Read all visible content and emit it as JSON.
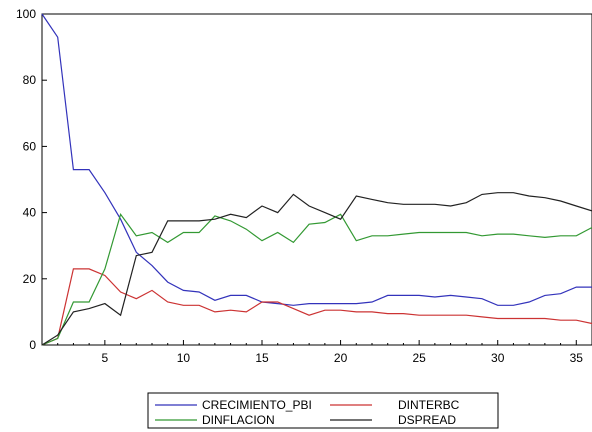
{
  "chart_data": {
    "type": "line",
    "x": [
      1,
      2,
      3,
      4,
      5,
      6,
      7,
      8,
      9,
      10,
      11,
      12,
      13,
      14,
      15,
      16,
      17,
      18,
      19,
      20,
      21,
      22,
      23,
      24,
      25,
      26,
      27,
      28,
      29,
      30,
      31,
      32,
      33,
      34,
      35,
      36
    ],
    "xticks": [
      5,
      10,
      15,
      20,
      25,
      30,
      35
    ],
    "yticks": [
      0,
      20,
      40,
      60,
      80,
      100
    ],
    "xlim": [
      1,
      36
    ],
    "ylim": [
      0,
      100
    ],
    "series": [
      {
        "name": "CRECIMIENTO_PBI",
        "color": "#3333bb",
        "values": [
          100,
          93,
          53,
          53,
          46,
          38,
          28,
          24,
          19,
          16.5,
          16,
          13.5,
          15,
          15,
          13,
          12.5,
          12,
          12.5,
          12.5,
          12.5,
          12.5,
          13,
          15,
          15,
          15,
          14.5,
          15,
          14.5,
          14,
          12,
          12,
          13,
          15,
          15.5,
          17.5,
          17.5
        ]
      },
      {
        "name": "DINTERBC",
        "color": "#cc3333",
        "values": [
          0,
          2,
          23,
          23,
          21,
          16,
          14,
          16.5,
          13,
          12,
          12,
          10,
          10.5,
          10,
          13,
          13,
          11,
          9,
          10.5,
          10.5,
          10,
          10,
          9.5,
          9.5,
          9,
          9,
          9,
          9,
          8.5,
          8,
          8,
          8,
          8,
          7.5,
          7.5,
          6.5
        ]
      },
      {
        "name": "DINFLACION",
        "color": "#339933",
        "values": [
          0,
          2,
          13,
          13,
          23,
          39.5,
          33,
          34,
          31,
          34,
          34,
          39,
          37.5,
          35,
          31.5,
          34,
          31,
          36.5,
          37,
          39.5,
          31.5,
          33,
          33,
          33.5,
          34,
          34,
          34,
          34,
          33,
          33.5,
          33.5,
          33,
          32.5,
          33,
          33,
          35.5
        ]
      },
      {
        "name": "DSPREAD",
        "color": "#222222",
        "values": [
          0,
          3,
          10,
          11,
          12.5,
          9,
          27,
          28,
          37.5,
          37.5,
          37.5,
          38,
          39.5,
          38.5,
          42,
          40,
          45.5,
          42,
          40,
          38,
          45,
          44,
          43,
          42.5,
          42.5,
          42.5,
          42,
          43,
          45.5,
          46,
          46,
          45,
          44.5,
          43.5,
          42,
          40.5
        ]
      }
    ]
  }
}
